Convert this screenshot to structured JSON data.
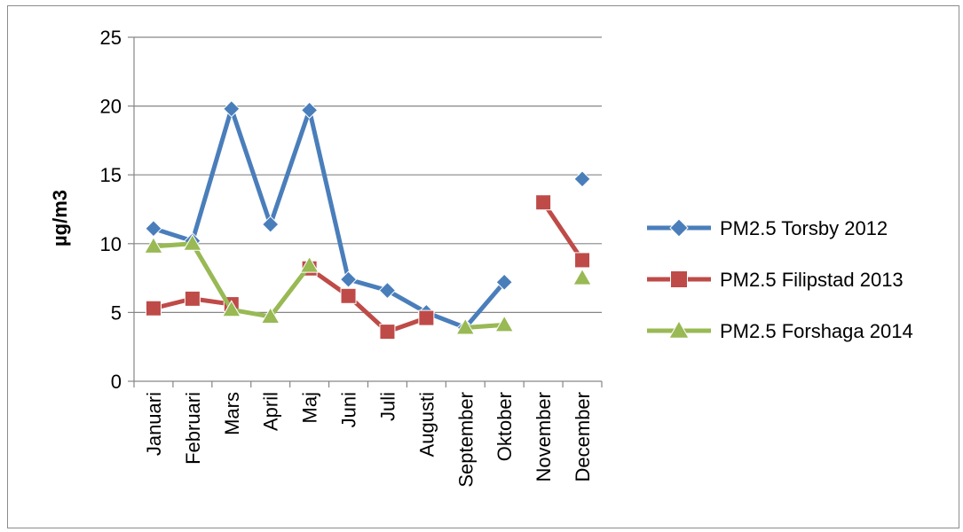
{
  "chart_data": {
    "type": "line",
    "ylabel": "µg/m3",
    "ylim": [
      0,
      25
    ],
    "yticks": [
      0,
      5,
      10,
      15,
      20,
      25
    ],
    "grid": true,
    "legend": "right",
    "categories": [
      "Januari",
      "Februari",
      "Mars",
      "April",
      "Maj",
      "Juni",
      "Juli",
      "Augusti",
      "September",
      "Oktober",
      "November",
      "December"
    ],
    "series": [
      {
        "name": "PM2.5 Torsby 2012",
        "color": "#4a7ebb",
        "marker": "diamond",
        "values": [
          11.1,
          10.2,
          19.8,
          11.4,
          19.7,
          7.4,
          6.6,
          5.0,
          3.9,
          7.2,
          null,
          14.7
        ]
      },
      {
        "name": "PM2.5 Filipstad 2013",
        "color": "#be4b48",
        "marker": "square",
        "values": [
          5.3,
          6.0,
          5.6,
          null,
          8.2,
          6.2,
          3.6,
          4.6,
          null,
          null,
          13.0,
          8.8
        ]
      },
      {
        "name": "PM2.5 Forshaga 2014",
        "color": "#98b954",
        "marker": "triangle",
        "values": [
          9.8,
          10.0,
          5.2,
          4.7,
          8.4,
          null,
          null,
          null,
          3.9,
          4.1,
          null,
          7.5
        ]
      }
    ]
  }
}
